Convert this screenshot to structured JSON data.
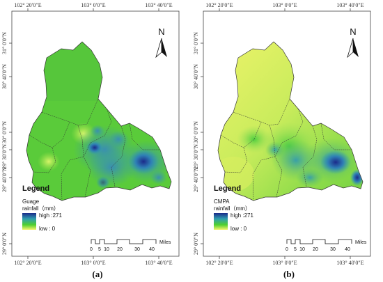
{
  "panels": [
    {
      "id": "a",
      "caption": "(a)",
      "legend_title": "Legend",
      "legend_name": "Guage",
      "legend_unit": "rainfall（mm）",
      "legend_high": "high :271",
      "legend_low": "low : 0",
      "top_ticks": [
        "102° 20′0″E",
        "103° 0′0″E",
        "103° 40′0″E"
      ],
      "bottom_ticks": [
        "102° 20′0″E",
        "103° 0′0″E",
        "103° 40′0″E"
      ],
      "side_ticks": [
        "31° 0′0″N",
        "30° 40′0″N",
        "30° 0′0″N",
        "29° 30′0″N",
        "29° 40′0″N",
        "29° 0′0″N"
      ],
      "north_label": "N",
      "scale_labels": [
        "0",
        "5",
        "10",
        "20",
        "30",
        "40"
      ],
      "scale_unit": "Miles"
    },
    {
      "id": "b",
      "caption": "(b)",
      "legend_title": "Legend",
      "legend_name": "CMPA",
      "legend_unit": "rainfall（mm）",
      "legend_high": "high :271",
      "legend_low": "low : 0",
      "top_ticks": [
        "102° 20′0″E",
        "103° 0′0″E",
        "103° 40′0″E"
      ],
      "bottom_ticks": [
        "102° 20′0″E",
        "103° 0′0″E",
        "103° 40′0″E"
      ],
      "side_ticks": [
        "31° 0′0″N",
        "30° 40′0″N",
        "30° 0′0″N",
        "29° 30′0″N",
        "29° 40′0″N",
        "29° 0′0″N"
      ],
      "north_label": "N",
      "scale_labels": [
        "0",
        "5",
        "10",
        "20",
        "30",
        "40"
      ],
      "scale_unit": "Miles"
    }
  ],
  "colors": {
    "ramp_high": "#1b2a8a",
    "ramp_mid": "#2f9fb0",
    "ramp_low_green": "#4fcf2f",
    "ramp_low_yellow": "#f4f56a",
    "boundary": "#333333",
    "frame": "#444444"
  }
}
